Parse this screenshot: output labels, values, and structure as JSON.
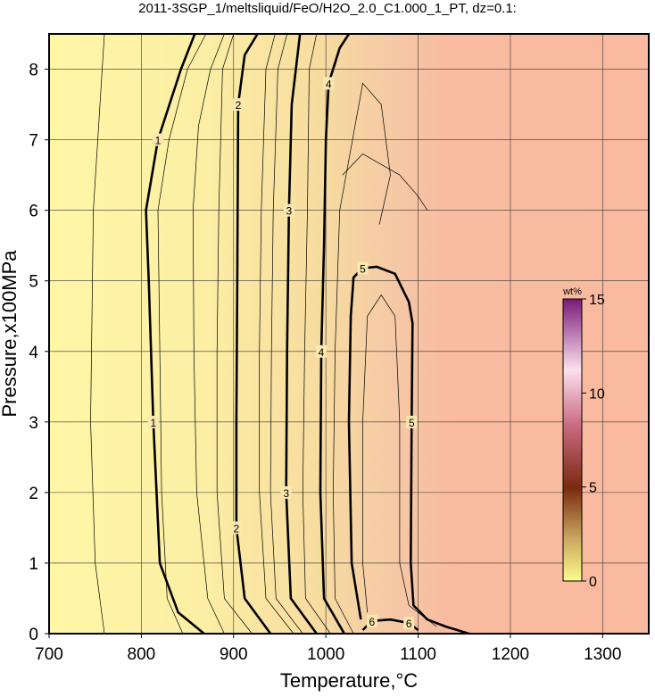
{
  "chart_data": {
    "type": "contour",
    "title": "2011-3SGP_1/meltsliquid/FeO/H2O_2.0_C1.000_1_PT, dz=0.1:",
    "xlabel": "Temperature,°C",
    "ylabel": "Pressure,x100MPa",
    "xlim": [
      700,
      1350
    ],
    "ylim": [
      0,
      8.5
    ],
    "xticks": [
      700,
      800,
      900,
      1000,
      1100,
      1200,
      1300
    ],
    "yticks": [
      0,
      1,
      2,
      3,
      4,
      5,
      6,
      7,
      8
    ],
    "grid": true,
    "contours": [
      {
        "level": 1,
        "T": [
          868,
          840,
          820,
          813,
          808,
          805,
          818,
          843,
          858
        ],
        "P": [
          0,
          0.3,
          1,
          3,
          5,
          6,
          7,
          8,
          8.5
        ]
      },
      {
        "level": 2,
        "T": [
          940,
          912,
          903,
          903,
          904,
          905,
          912,
          926
        ],
        "P": [
          0,
          0.5,
          1.5,
          3,
          5,
          7.5,
          8.2,
          8.5
        ]
      },
      {
        "level": 3,
        "T": [
          990,
          962,
          957,
          958,
          960,
          963,
          972
        ],
        "P": [
          0,
          0.5,
          2,
          4,
          6,
          7.5,
          8.5
        ]
      },
      {
        "level": 4,
        "T": [
          1020,
          998,
          994,
          995,
          998,
          1000,
          1003,
          1015,
          1025
        ],
        "P": [
          0,
          0.5,
          2,
          4,
          5.5,
          7,
          7.8,
          8.3,
          8.5
        ]
      },
      {
        "level": 5,
        "T": [
          1038,
          1028,
          1025,
          1027,
          1030,
          1040,
          1055,
          1075,
          1090,
          1094,
          1093,
          1092,
          1095,
          1110,
          1130,
          1155
        ],
        "P": [
          0.2,
          1,
          3,
          4.5,
          5.05,
          5.18,
          5.2,
          5.1,
          4.7,
          4.4,
          3,
          1,
          0.4,
          0.2,
          0.1,
          0
        ]
      },
      {
        "level": 6,
        "T": [
          1040,
          1050,
          1070,
          1090,
          1100
        ],
        "P": [
          0.05,
          0.18,
          0.2,
          0.15,
          0.05
        ]
      }
    ],
    "thin_contours": [
      {
        "T": [
          760,
          750,
          745,
          748,
          760
        ],
        "P": [
          0,
          1,
          3,
          6,
          8.5
        ]
      },
      {
        "T": [
          845,
          828,
          822,
          820,
          818,
          830,
          850,
          870
        ],
        "P": [
          0,
          0.5,
          2,
          4,
          6,
          7,
          8,
          8.5
        ]
      },
      {
        "T": [
          890,
          872,
          860,
          857,
          856,
          862,
          875,
          890
        ],
        "P": [
          0,
          0.5,
          2,
          4,
          6,
          7.2,
          8,
          8.5
        ]
      },
      {
        "T": [
          920,
          890,
          882,
          882,
          884,
          888,
          900
        ],
        "P": [
          0,
          0.5,
          2,
          4,
          6,
          8,
          8.5
        ]
      },
      {
        "T": [
          965,
          935,
          928,
          928,
          930,
          935,
          945
        ],
        "P": [
          0,
          0.5,
          2,
          4,
          6,
          8,
          8.5
        ]
      },
      {
        "T": [
          975,
          946,
          940,
          941,
          943,
          948,
          958
        ],
        "P": [
          0,
          0.5,
          2,
          4,
          6,
          8,
          8.5
        ]
      },
      {
        "T": [
          1005,
          978,
          975,
          977,
          980,
          982,
          990
        ],
        "P": [
          0,
          0.5,
          2,
          4,
          6,
          8,
          8.5
        ]
      },
      {
        "T": [
          1030,
          1010,
          1008,
          1010,
          1015,
          1040,
          1060,
          1070,
          1058
        ],
        "P": [
          0,
          0.5,
          2,
          4,
          6,
          7.8,
          7.5,
          6.5,
          5.8
        ]
      },
      {
        "T": [
          1045,
          1040,
          1040,
          1045,
          1060,
          1075,
          1080,
          1080,
          1090,
          1120
        ],
        "P": [
          0.3,
          1,
          3,
          4.5,
          4.8,
          4.5,
          3,
          1,
          0.4,
          0.1
        ]
      },
      {
        "T": [
          1018,
          1040,
          1080,
          1100,
          1110
        ],
        "P": [
          6.5,
          6.8,
          6.5,
          6.2,
          6
        ]
      }
    ],
    "colorbar": {
      "label": "wt%",
      "lim": [
        0,
        15
      ],
      "ticks": [
        0,
        5,
        10,
        15
      ]
    }
  }
}
